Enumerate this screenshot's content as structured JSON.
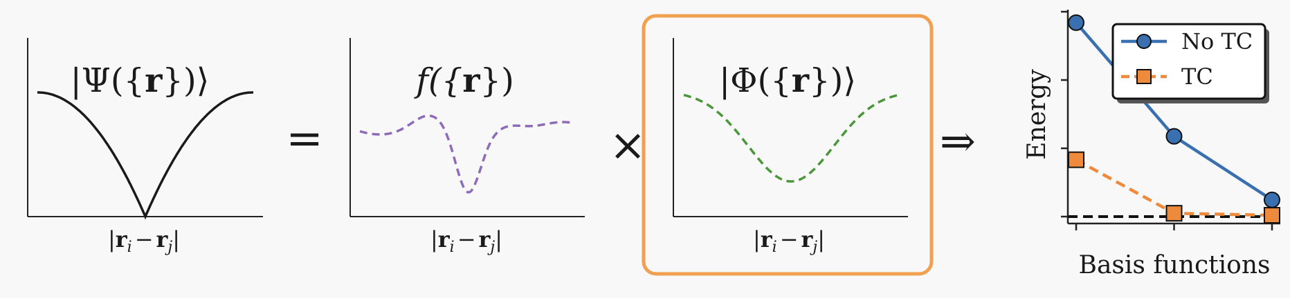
{
  "panels": {
    "psi": {
      "title_pre": "|Ψ({",
      "title_bold": "r",
      "title_post": "})⟩",
      "axis_r": "r",
      "axis_i": "i",
      "axis_minus": "−",
      "axis_j": "j"
    },
    "f": {
      "title_pre": "f({",
      "title_bold": "r",
      "title_post": "})",
      "axis_r": "r",
      "axis_i": "i",
      "axis_minus": "−",
      "axis_j": "j"
    },
    "phi": {
      "title_pre": "|Φ({",
      "title_bold": "r",
      "title_post": "})⟩",
      "axis_r": "r",
      "axis_i": "i",
      "axis_minus": "−",
      "axis_j": "j"
    }
  },
  "operators": {
    "equals": "=",
    "times": "×",
    "implies": "⇒"
  },
  "colors": {
    "psi": "#1a1a1a",
    "f": "#8e6bb8",
    "phi": "#4a963a",
    "highlight": "#f0a050",
    "no_tc": "#3a6fb0",
    "tc": "#ee8a3c"
  },
  "chart_data": {
    "type": "line",
    "xlabel": "Basis functions",
    "ylabel": "Energy",
    "x": [
      0,
      1,
      2
    ],
    "series": [
      {
        "name": "No TC",
        "values": [
          2.9,
          1.2,
          0.25
        ],
        "marker": "circle",
        "style": "solid"
      },
      {
        "name": "TC",
        "values": [
          0.85,
          0.05,
          0.02
        ],
        "marker": "square",
        "style": "dashed"
      }
    ],
    "reference_line": 0,
    "ylim": [
      -0.1,
      3.0
    ],
    "legend": "top-right"
  }
}
